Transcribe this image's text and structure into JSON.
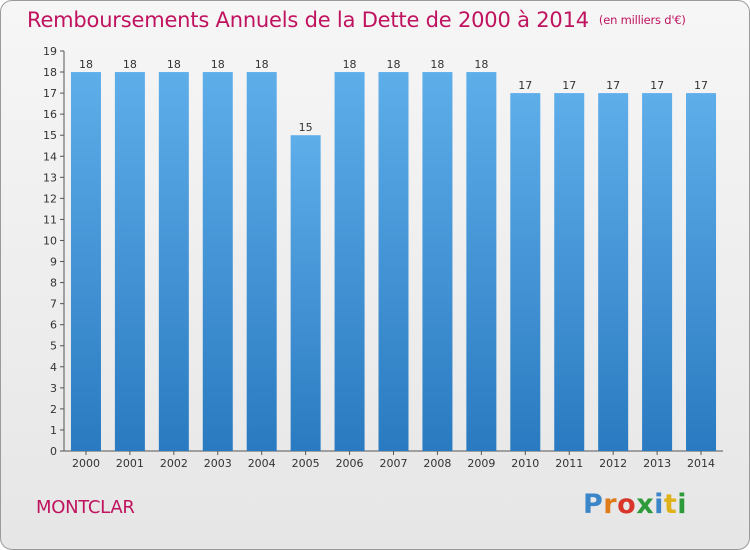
{
  "title": "Remboursements Annuels de la Dette de 2000 à 2014",
  "title_unit": "(en milliers d'€)",
  "commune": "MONTCLAR",
  "logo": {
    "letters": [
      "P",
      "r",
      "o",
      "x",
      "i",
      "t",
      "i"
    ],
    "colors": [
      "#3b86c9",
      "#e07b1a",
      "#d8362b",
      "#2e9b3a",
      "#3b86c9",
      "#e0b21a",
      "#2e9b3a"
    ]
  },
  "colors": {
    "accent": "#c0135f",
    "bar_top": "#5eaeea",
    "bar_bottom": "#2a7ac1"
  },
  "chart_data": {
    "type": "bar",
    "categories": [
      "2000",
      "2001",
      "2002",
      "2003",
      "2004",
      "2005",
      "2006",
      "2007",
      "2008",
      "2009",
      "2010",
      "2011",
      "2012",
      "2013",
      "2014"
    ],
    "values": [
      18,
      18,
      18,
      18,
      18,
      15,
      18,
      18,
      18,
      18,
      17,
      17,
      17,
      17,
      17
    ],
    "ylim": [
      0,
      19
    ],
    "yticks": [
      0,
      1,
      2,
      3,
      4,
      5,
      6,
      7,
      8,
      9,
      10,
      11,
      12,
      13,
      14,
      15,
      16,
      17,
      18,
      19
    ],
    "grid": false,
    "legend": "none"
  }
}
